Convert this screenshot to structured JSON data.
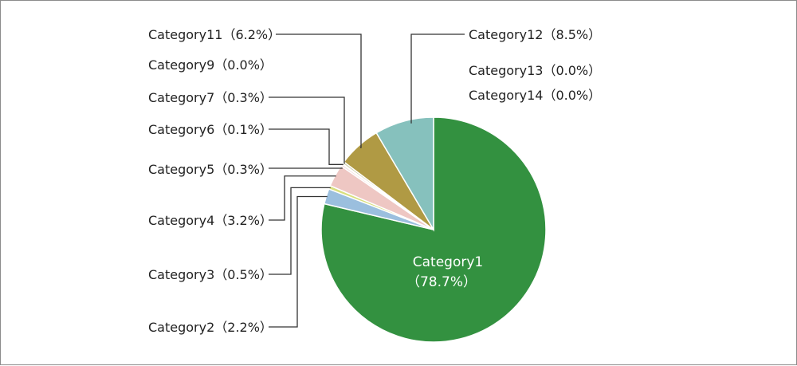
{
  "chart_data": {
    "type": "pie",
    "title": "",
    "slices": [
      {
        "name": "Category1",
        "value": 78.7,
        "label": "Category1",
        "pct": "（78.7%）",
        "color": "#339140"
      },
      {
        "name": "Category2",
        "value": 2.2,
        "label": "Category2（2.2%）",
        "color": "#9bbfde"
      },
      {
        "name": "Category3",
        "value": 0.5,
        "label": "Category3（0.5%）",
        "color": "#d8df7e"
      },
      {
        "name": "Category4",
        "value": 3.2,
        "label": "Category4（3.2%）",
        "color": "#eec7c3"
      },
      {
        "name": "Category5",
        "value": 0.3,
        "label": "Category5（0.3%）",
        "color": "#f4dede"
      },
      {
        "name": "Category6",
        "value": 0.1,
        "label": "Category6（0.1%）",
        "color": "#e9eef3"
      },
      {
        "name": "Category7",
        "value": 0.3,
        "label": "Category7（0.3%）",
        "color": "#c9c9a0"
      },
      {
        "name": "Category9",
        "value": 0.0,
        "label": "Category9（0.0%）",
        "color": "#cccccc"
      },
      {
        "name": "Category11",
        "value": 6.2,
        "label": "Category11（6.2%）",
        "color": "#b09a44"
      },
      {
        "name": "Category12",
        "value": 8.5,
        "label": "Category12（8.5%）",
        "color": "#86c1bd"
      },
      {
        "name": "Category13",
        "value": 0.0,
        "label": "Category13（0.0%）",
        "color": "#cccccc"
      },
      {
        "name": "Category14",
        "value": 0.0,
        "label": "Category14（0.0%）",
        "color": "#cccccc"
      }
    ]
  }
}
